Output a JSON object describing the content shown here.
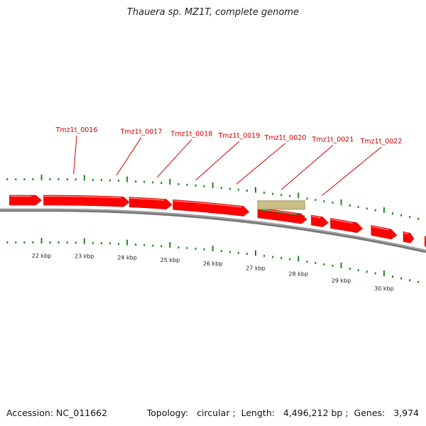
{
  "title": "Thauera sp. MZ1T, complete genome",
  "footer": {
    "accession_label": "Accession:",
    "accession": "NC_011662",
    "topology_label": "Topology:",
    "topology": "circular",
    "length_label": "Length:",
    "length": "4,496,212 bp",
    "genes_label": "Genes:",
    "genes": "3,974"
  },
  "colors": {
    "gene": "#ff0000",
    "gene_highlight": "#c9bf87",
    "tick": "#1a8a1a",
    "label": "#cc0000",
    "backbone": "#777777",
    "text": "#222222"
  },
  "genome_map": {
    "type": "linear-genome-zoom",
    "axis_unit": "kbp",
    "x_range_kbp": [
      21.25,
      31.25
    ],
    "scale_ticks_kbp": [
      22,
      23,
      24,
      25,
      26,
      27,
      28,
      29,
      30
    ],
    "scale_tick_labels": [
      "22 kbp",
      "23 kbp",
      "24 kbp",
      "25 kbp",
      "26 kbp",
      "27 kbp",
      "28 kbp",
      "29 kbp",
      "30 kbp"
    ],
    "genes_forward": [
      {
        "start": 21.25,
        "end": 22.0
      },
      {
        "start": 22.05,
        "end": 24.05
      },
      {
        "start": 24.05,
        "end": 25.05
      },
      {
        "start": 25.07,
        "end": 26.85
      },
      {
        "start": 27.05,
        "end": 28.2
      },
      {
        "start": 28.3,
        "end": 28.7
      },
      {
        "start": 28.75,
        "end": 29.5
      },
      {
        "start": 29.7,
        "end": 30.3
      },
      {
        "start": 30.45,
        "end": 30.7
      },
      {
        "start": 30.95,
        "end": 31.25
      }
    ],
    "genes_highlight": [
      {
        "start": 27.05,
        "end": 28.15
      }
    ],
    "gene_labels": [
      {
        "text": "Tmz1t_0016",
        "pos_kbp": 22.75
      },
      {
        "text": "Tmz1t_0017",
        "pos_kbp": 23.75
      },
      {
        "text": "Tmz1t_0018",
        "pos_kbp": 24.7
      },
      {
        "text": "Tmz1t_0019",
        "pos_kbp": 25.6
      },
      {
        "text": "Tmz1t_0020",
        "pos_kbp": 26.55
      },
      {
        "text": "Tmz1t_0021",
        "pos_kbp": 27.6
      },
      {
        "text": "Tmz1t_0022",
        "pos_kbp": 28.55
      }
    ]
  }
}
